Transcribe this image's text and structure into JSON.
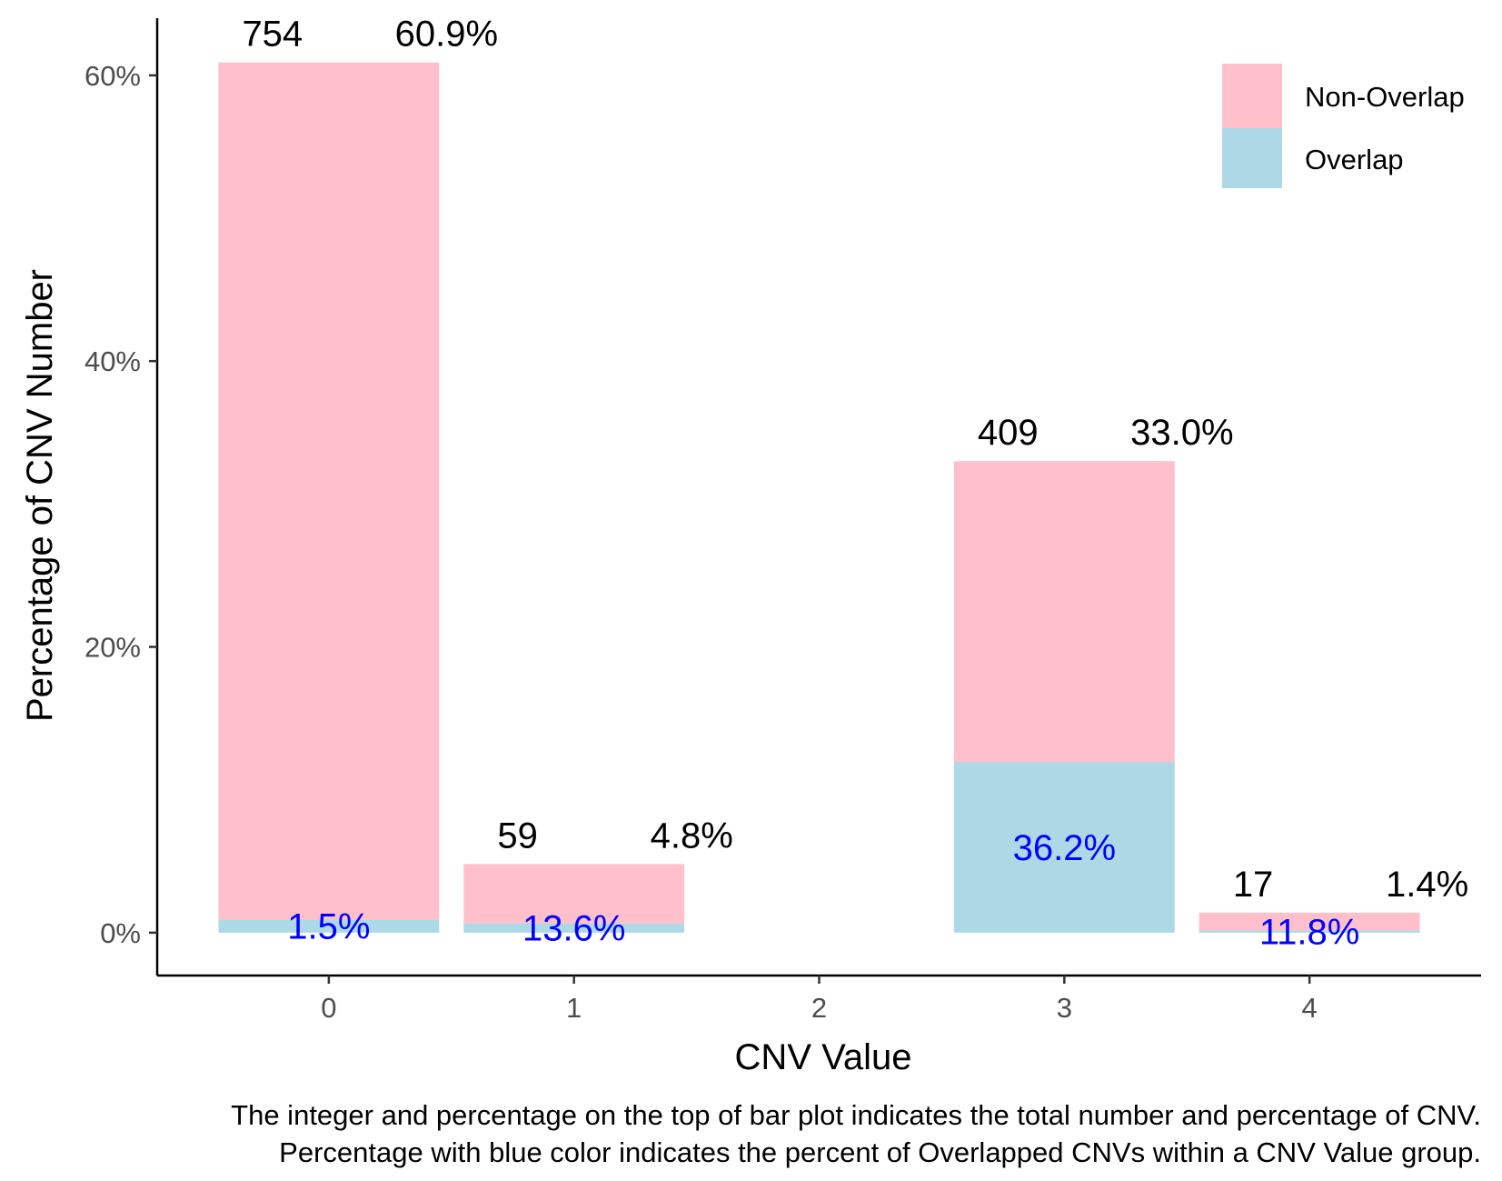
{
  "chart_data": {
    "type": "bar",
    "stacked": true,
    "categories": [
      "0",
      "1",
      "2",
      "3",
      "4"
    ],
    "series": [
      {
        "name": "Non-Overlap",
        "color": "#FFC0CB",
        "values": [
          59.99,
          4.15,
          0,
          21.05,
          1.24
        ]
      },
      {
        "name": "Overlap",
        "color": "#ADD8E6",
        "values": [
          0.91,
          0.65,
          0,
          11.95,
          0.16
        ]
      }
    ],
    "totals": [
      60.9,
      4.8,
      0,
      33.0,
      1.4
    ],
    "top_labels": [
      {
        "count": "754",
        "percent": "60.9%"
      },
      {
        "count": "59",
        "percent": "4.8%"
      },
      null,
      {
        "count": "409",
        "percent": "33.0%"
      },
      {
        "count": "17",
        "percent": "1.4%"
      }
    ],
    "overlap_labels": [
      "1.5%",
      "13.6%",
      "",
      "36.2%",
      "11.8%"
    ],
    "overlap_label_color": "#0000FF",
    "xlabel": "CNV Value",
    "ylabel": "Percentage of CNV Number",
    "yticks": [
      "0%",
      "20%",
      "40%",
      "60%"
    ],
    "ytick_values": [
      0,
      20,
      40,
      60
    ],
    "ylim": [
      -3,
      64
    ],
    "xlim": [
      -0.7,
      4.7
    ],
    "legend_position": "top-right",
    "grid": false,
    "caption": [
      "The integer and percentage on the top of bar plot indicates the total number and percentage of CNV.",
      "Percentage with blue color indicates the percent of Overlapped CNVs within a CNV Value group."
    ]
  }
}
